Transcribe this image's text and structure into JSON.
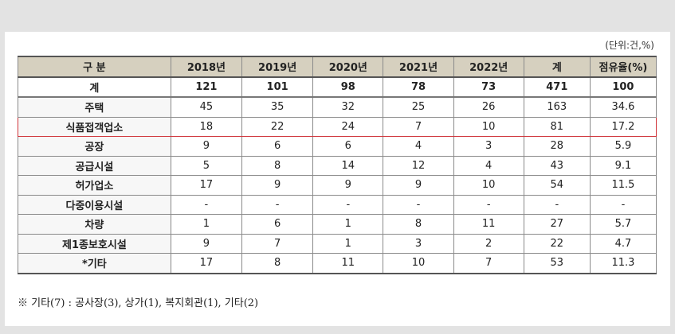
{
  "unit_note": "(단위:건,%)",
  "headers": [
    "구 분",
    "2018년",
    "2019년",
    "2020년",
    "2021년",
    "2022년",
    "계",
    "점유율(%)"
  ],
  "rows": [
    {
      "label": "계",
      "values": [
        "121",
        "101",
        "98",
        "78",
        "73",
        "471",
        "100"
      ]
    },
    {
      "label": "주택",
      "values": [
        "45",
        "35",
        "32",
        "25",
        "26",
        "163",
        "34.6"
      ]
    },
    {
      "label": "식품접객업소",
      "values": [
        "18",
        "22",
        "24",
        "7",
        "10",
        "81",
        "17.2"
      ]
    },
    {
      "label": "공장",
      "values": [
        "9",
        "6",
        "6",
        "4",
        "3",
        "28",
        "5.9"
      ]
    },
    {
      "label": "공급시설",
      "values": [
        "5",
        "8",
        "14",
        "12",
        "4",
        "43",
        "9.1"
      ]
    },
    {
      "label": "허가업소",
      "values": [
        "17",
        "9",
        "9",
        "9",
        "10",
        "54",
        "11.5"
      ]
    },
    {
      "label": "다중이용시설",
      "values": [
        "-",
        "-",
        "-",
        "-",
        "-",
        "-",
        "-"
      ]
    },
    {
      "label": "차량",
      "values": [
        "1",
        "6",
        "1",
        "8",
        "11",
        "27",
        "5.7"
      ]
    },
    {
      "label": "제1종보호시설",
      "values": [
        "9",
        "7",
        "1",
        "3",
        "2",
        "22",
        "4.7"
      ]
    },
    {
      "label": "*기타",
      "values": [
        "17",
        "8",
        "11",
        "10",
        "7",
        "53",
        "11.3"
      ]
    }
  ],
  "footnote": "※ 기타(7) : 공사장(3), 상가(1), 복지회관(1), 기타(2)",
  "colors": {
    "header_bg": "#d6d0bf",
    "highlight_border": "#d0343a"
  }
}
